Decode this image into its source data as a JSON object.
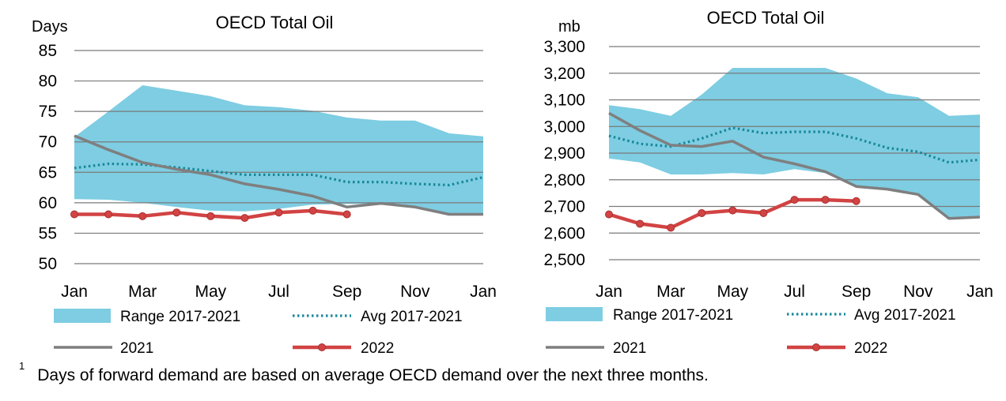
{
  "chart_data": [
    {
      "type": "area",
      "title": "OECD Total Oil",
      "ylabel": "Days",
      "xlabel": "",
      "x_ticks": [
        "Jan",
        "Mar",
        "May",
        "Jul",
        "Sep",
        "Nov",
        "Jan"
      ],
      "ylim": [
        50,
        85
      ],
      "y_ticks": [
        "50",
        "55",
        "60",
        "65",
        "70",
        "75",
        "80",
        "85"
      ],
      "y_tick_values": [
        50,
        55,
        60,
        65,
        70,
        75,
        80,
        85
      ],
      "grid": true,
      "legend_position": "bottom",
      "colors": {
        "range": "#7ecde2",
        "avg": "#17889a",
        "y2021": "#7f7f7f",
        "y2022": "#d24343"
      },
      "months": [
        "Jan",
        "Feb",
        "Mar",
        "Apr",
        "May",
        "Jun",
        "Jul",
        "Aug",
        "Sep",
        "Oct",
        "Nov",
        "Dec",
        "Jan"
      ],
      "series": [
        {
          "name": "Range 2017-2021",
          "kind": "band",
          "low": [
            60.6,
            60.5,
            60.0,
            59.3,
            58.7,
            58.6,
            59.0,
            59.7,
            59.8,
            59.8,
            59.3,
            58.2,
            58.1
          ],
          "high": [
            70.8,
            75.0,
            79.3,
            78.4,
            77.5,
            76.0,
            75.7,
            75.1,
            74.0,
            73.5,
            73.5,
            71.4,
            70.9
          ]
        },
        {
          "name": "Avg 2017-2021",
          "kind": "dotted",
          "values": [
            65.7,
            66.4,
            66.3,
            65.8,
            65.2,
            64.6,
            64.6,
            64.6,
            63.4,
            63.4,
            63.1,
            62.9,
            64.2
          ]
        },
        {
          "name": "2021",
          "kind": "line",
          "values": [
            71.0,
            68.7,
            66.6,
            65.5,
            64.6,
            63.1,
            62.2,
            61.1,
            59.3,
            59.9,
            59.3,
            58.1,
            58.1
          ]
        },
        {
          "name": "2022",
          "kind": "markers",
          "values": [
            58.1,
            58.1,
            57.8,
            58.4,
            57.8,
            57.5,
            58.4,
            58.7,
            58.1
          ]
        }
      ]
    },
    {
      "type": "area",
      "title": "OECD Total Oil",
      "ylabel": "mb",
      "xlabel": "",
      "x_ticks": [
        "Jan",
        "Mar",
        "May",
        "Jul",
        "Sep",
        "Nov",
        "Jan"
      ],
      "ylim": [
        2500,
        3300
      ],
      "y_ticks": [
        "2,500",
        "2,600",
        "2,700",
        "2,800",
        "2,900",
        "3,000",
        "3,100",
        "3,200",
        "3,300"
      ],
      "y_tick_values": [
        2500,
        2600,
        2700,
        2800,
        2900,
        3000,
        3100,
        3200,
        3300
      ],
      "grid": true,
      "legend_position": "bottom",
      "colors": {
        "range": "#7ecde2",
        "avg": "#17889a",
        "y2021": "#7f7f7f",
        "y2022": "#d24343"
      },
      "months": [
        "Jan",
        "Feb",
        "Mar",
        "Apr",
        "May",
        "Jun",
        "Jul",
        "Aug",
        "Sep",
        "Oct",
        "Nov",
        "Dec",
        "Jan"
      ],
      "series": [
        {
          "name": "Range 2017-2021",
          "kind": "band",
          "low": [
            2880,
            2865,
            2820,
            2820,
            2825,
            2820,
            2840,
            2825,
            2775,
            2765,
            2745,
            2655,
            2660
          ],
          "high": [
            3080,
            3065,
            3040,
            3120,
            3220,
            3220,
            3220,
            3220,
            3180,
            3125,
            3110,
            3040,
            3045
          ]
        },
        {
          "name": "Avg 2017-2021",
          "kind": "dotted",
          "values": [
            2965,
            2935,
            2925,
            2955,
            2995,
            2975,
            2980,
            2980,
            2955,
            2920,
            2905,
            2865,
            2875
          ]
        },
        {
          "name": "2021",
          "kind": "line",
          "values": [
            3050,
            2985,
            2930,
            2925,
            2945,
            2885,
            2860,
            2830,
            2775,
            2765,
            2745,
            2655,
            2660
          ]
        },
        {
          "name": "2022",
          "kind": "markers",
          "values": [
            2670,
            2635,
            2620,
            2675,
            2685,
            2675,
            2725,
            2725,
            2720
          ]
        }
      ]
    }
  ],
  "footnote": {
    "marker": "1",
    "text": "Days of forward demand are based on average OECD demand over the next three months."
  }
}
